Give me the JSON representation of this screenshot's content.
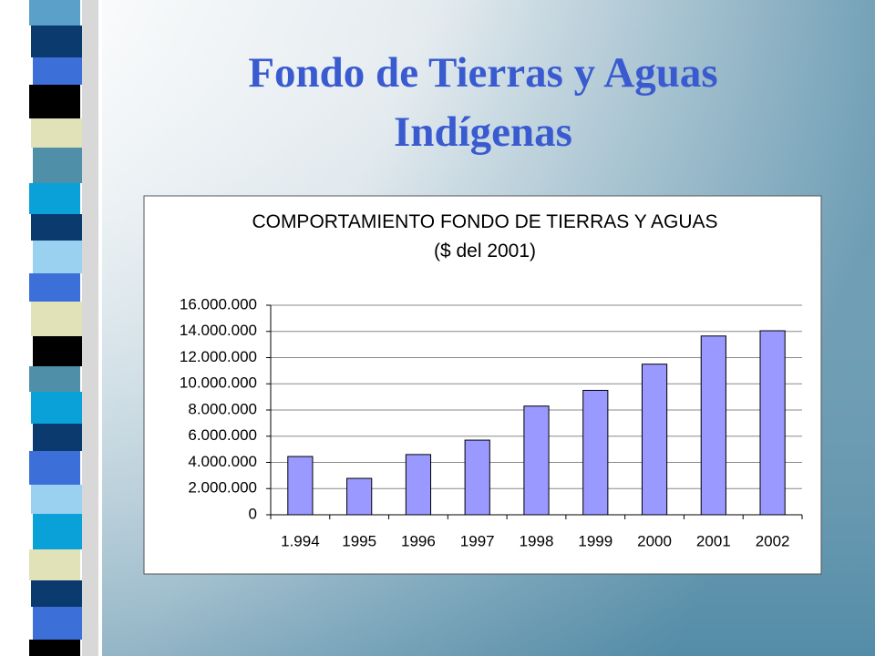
{
  "slide": {
    "title_lines": [
      "Fondo de Tierras y Aguas",
      "Indígenas"
    ]
  },
  "chart_data": {
    "type": "bar",
    "title": "COMPORTAMIENTO FONDO DE TIERRAS Y AGUAS",
    "subtitle": "($ del 2001)",
    "categories": [
      "1.994",
      "1995",
      "1996",
      "1997",
      "1998",
      "1999",
      "2000",
      "2001",
      "2002"
    ],
    "values": [
      4450000,
      2780000,
      4600000,
      5700000,
      8300000,
      9500000,
      11500000,
      13650000,
      14050000
    ],
    "color": "#9999ff",
    "ylim": [
      0,
      16000000
    ],
    "yticks": [
      0,
      {
        "value": 2000000,
        "label": "2.000.000"
      },
      {
        "value": 4000000,
        "label": "4.000.000"
      },
      {
        "value": 6000000,
        "label": "6.000.000"
      },
      {
        "value": 8000000,
        "label": "8.000.000"
      },
      {
        "value": 10000000,
        "label": "10.000.000"
      },
      {
        "value": 12000000,
        "label": "12.000.000"
      },
      {
        "value": 14000000,
        "label": "14.000.000"
      },
      {
        "value": 16000000,
        "label": "16.000.000"
      }
    ],
    "grid": true
  }
}
